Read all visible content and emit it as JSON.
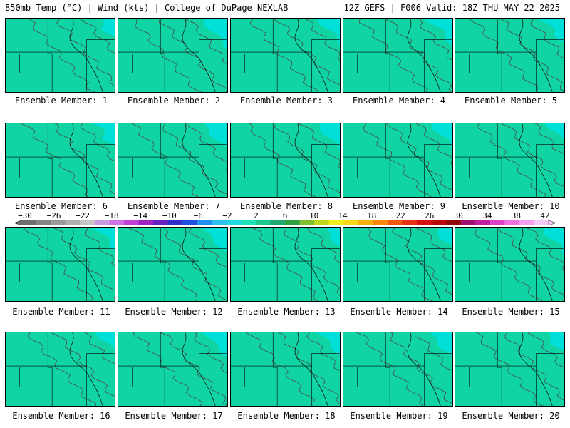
{
  "header": {
    "left": "850mb Temp (°C) | Wind (kts) | College of DuPage NEXLAB",
    "right": "12Z GEFS | F006 Valid: 18Z THU MAY 22 2025"
  },
  "members": [
    "Ensemble Member: 1",
    "Ensemble Member: 2",
    "Ensemble Member: 3",
    "Ensemble Member: 4",
    "Ensemble Member: 5",
    "Ensemble Member: 6",
    "Ensemble Member: 7",
    "Ensemble Member: 8",
    "Ensemble Member: 9",
    "Ensemble Member: 10",
    "Ensemble Member: 11",
    "Ensemble Member: 12",
    "Ensemble Member: 13",
    "Ensemble Member: 14",
    "Ensemble Member: 15",
    "Ensemble Member: 16",
    "Ensemble Member: 17",
    "Ensemble Member: 18",
    "Ensemble Member: 19",
    "Ensemble Member: 20"
  ],
  "colorbar": {
    "labels": [
      "−30",
      "−26",
      "−22",
      "−18",
      "−14",
      "−10",
      "−6",
      "−2",
      "2",
      "6",
      "10",
      "14",
      "18",
      "22",
      "26",
      "30",
      "34",
      "38",
      "42"
    ],
    "colors": [
      "#6e6e6e",
      "#848484",
      "#9a9a9a",
      "#b0b0b0",
      "#c6c6c6",
      "#c89be0",
      "#d070e8",
      "#c040d8",
      "#a020c0",
      "#6a20c0",
      "#3030c8",
      "#2050e0",
      "#2090f0",
      "#30c0f0",
      "#20d8e0",
      "#20e0b8",
      "#20c890",
      "#20a870",
      "#30a040",
      "#80c030",
      "#c0d820",
      "#f0f020",
      "#f8d818",
      "#f8b010",
      "#f88810",
      "#f05810",
      "#e83010",
      "#d81010",
      "#b80808",
      "#900808",
      "#a01070",
      "#c020a0",
      "#e040c8",
      "#f070e0",
      "#f8a0f0",
      "#f8c8f8"
    ]
  },
  "map": {
    "palette": [
      "#00e0d8",
      "#10d4a4",
      "#12c080",
      "#40b83c",
      "#90d020",
      "#d0e010",
      "#ffff00",
      "#ffc000",
      "#ff8000",
      "#ff4010",
      "#e01818"
    ]
  }
}
